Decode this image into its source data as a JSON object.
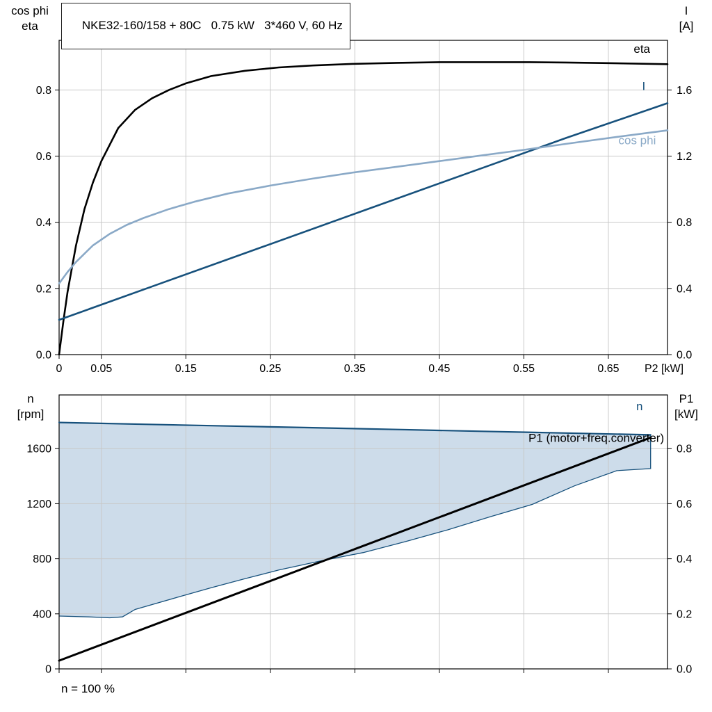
{
  "title_box": "NKE32-160/158 + 80C   0.75 kW   3*460 V, 60 Hz",
  "footnote": "n = 100 %",
  "corner_labels": {
    "top_left": [
      "cos phi",
      "eta"
    ],
    "top_right": [
      "I",
      "[A]"
    ],
    "bottom_left": [
      "n",
      "[rpm]"
    ],
    "bottom_right": [
      "P1",
      "[kW]"
    ]
  },
  "colors": {
    "dark_blue": "#17517c",
    "light_blue": "#8aa9c7",
    "band_fill": "#cddcea",
    "grid": "#c8c8c8",
    "axis": "#000000"
  },
  "chart_data": [
    {
      "type": "line",
      "title": "NKE32-160/158 + 80C  0.75 kW  3*460 V, 60 Hz",
      "x_label": "P2 [kW]",
      "x_range": [
        0,
        0.72
      ],
      "x_ticks": [
        0,
        0.05,
        0.15,
        0.25,
        0.35,
        0.45,
        0.55,
        0.65
      ],
      "x_tick_labels": [
        "0",
        "0.05",
        "0.15",
        "0.25",
        "0.35",
        "0.45",
        "0.55",
        "0.65"
      ],
      "left_axis": {
        "label": "cos phi / eta",
        "range": [
          0,
          0.95
        ],
        "ticks": [
          0,
          0.2,
          0.4,
          0.6,
          0.8
        ],
        "tick_labels": [
          "0.0",
          "0.2",
          "0.4",
          "0.6",
          "0.8"
        ]
      },
      "right_axis": {
        "label": "I [A]",
        "range": [
          0,
          1.9
        ],
        "ticks": [
          0,
          0.4,
          0.8,
          1.2,
          1.6
        ],
        "tick_labels": [
          "0.0",
          "0.4",
          "0.8",
          "1.2",
          "1.6"
        ]
      },
      "grid": true,
      "series": [
        {
          "name": "eta",
          "axis": "left",
          "color": "axis",
          "width": 2.6,
          "label": {
            "text": "eta",
            "x": 0.68,
            "y": 0.912,
            "color": "axis"
          },
          "points": [
            [
              0,
              0
            ],
            [
              0.005,
              0.1
            ],
            [
              0.01,
              0.19
            ],
            [
              0.02,
              0.33
            ],
            [
              0.03,
              0.44
            ],
            [
              0.04,
              0.52
            ],
            [
              0.05,
              0.585
            ],
            [
              0.07,
              0.685
            ],
            [
              0.09,
              0.74
            ],
            [
              0.11,
              0.775
            ],
            [
              0.13,
              0.8
            ],
            [
              0.15,
              0.82
            ],
            [
              0.18,
              0.842
            ],
            [
              0.22,
              0.858
            ],
            [
              0.26,
              0.868
            ],
            [
              0.3,
              0.874
            ],
            [
              0.35,
              0.879
            ],
            [
              0.4,
              0.882
            ],
            [
              0.45,
              0.884
            ],
            [
              0.5,
              0.884
            ],
            [
              0.55,
              0.884
            ],
            [
              0.6,
              0.883
            ],
            [
              0.65,
              0.881
            ],
            [
              0.72,
              0.878
            ]
          ]
        },
        {
          "name": "I",
          "axis": "right",
          "color": "dark_blue",
          "width": 2.6,
          "label": {
            "text": "I",
            "x": 0.69,
            "y": 1.6,
            "color": "dark_blue"
          },
          "points": [
            [
              0,
              0.21
            ],
            [
              0.12,
              0.43
            ],
            [
              0.24,
              0.65
            ],
            [
              0.36,
              0.87
            ],
            [
              0.48,
              1.09
            ],
            [
              0.6,
              1.31
            ],
            [
              0.72,
              1.52
            ]
          ]
        },
        {
          "name": "cos phi",
          "axis": "left",
          "color": "light_blue",
          "width": 2.6,
          "label": {
            "text": "cos phi",
            "x": 0.662,
            "y": 0.636,
            "color": "light_blue"
          },
          "points": [
            [
              0,
              0.215
            ],
            [
              0.01,
              0.25
            ],
            [
              0.02,
              0.28
            ],
            [
              0.04,
              0.33
            ],
            [
              0.06,
              0.365
            ],
            [
              0.08,
              0.392
            ],
            [
              0.1,
              0.413
            ],
            [
              0.13,
              0.44
            ],
            [
              0.16,
              0.462
            ],
            [
              0.2,
              0.487
            ],
            [
              0.25,
              0.511
            ],
            [
              0.3,
              0.532
            ],
            [
              0.35,
              0.551
            ],
            [
              0.4,
              0.568
            ],
            [
              0.45,
              0.585
            ],
            [
              0.5,
              0.602
            ],
            [
              0.55,
              0.619
            ],
            [
              0.6,
              0.637
            ],
            [
              0.66,
              0.658
            ],
            [
              0.72,
              0.678
            ]
          ]
        }
      ]
    },
    {
      "type": "line",
      "title": "Speed band and input power",
      "x_label": "",
      "x_range": [
        0,
        0.72
      ],
      "x_ticks": [
        0,
        0.05,
        0.15,
        0.25,
        0.35,
        0.45,
        0.55,
        0.65
      ],
      "x_tick_labels": [],
      "left_axis": {
        "label": "n [rpm]",
        "range": [
          0,
          1990
        ],
        "ticks": [
          0,
          400,
          800,
          1200,
          1600
        ],
        "tick_labels": [
          "0",
          "400",
          "800",
          "1200",
          "1600"
        ]
      },
      "right_axis": {
        "label": "P1 [kW]",
        "range": [
          0,
          0.995
        ],
        "ticks": [
          0,
          0.2,
          0.4,
          0.6,
          0.8
        ],
        "tick_labels": [
          "0.0",
          "0.2",
          "0.4",
          "0.6",
          "0.8"
        ]
      },
      "grid": true,
      "band": {
        "fill": "band_fill",
        "outline_color": "dark_blue",
        "outline_width": 1.3,
        "upper": [
          [
            0,
            1790
          ],
          [
            0.1,
            1777
          ],
          [
            0.2,
            1764
          ],
          [
            0.3,
            1752
          ],
          [
            0.4,
            1739
          ],
          [
            0.5,
            1726
          ],
          [
            0.6,
            1713
          ],
          [
            0.7,
            1700
          ]
        ],
        "lower": [
          [
            0,
            384
          ],
          [
            0.035,
            378
          ],
          [
            0.06,
            371
          ],
          [
            0.075,
            378
          ],
          [
            0.09,
            432
          ],
          [
            0.14,
            520
          ],
          [
            0.18,
            590
          ],
          [
            0.22,
            655
          ],
          [
            0.26,
            718
          ],
          [
            0.31,
            785
          ],
          [
            0.36,
            845
          ],
          [
            0.41,
            925
          ],
          [
            0.46,
            1010
          ],
          [
            0.51,
            1105
          ],
          [
            0.56,
            1195
          ],
          [
            0.61,
            1330
          ],
          [
            0.66,
            1440
          ],
          [
            0.7,
            1455
          ]
        ]
      },
      "series": [
        {
          "name": "n",
          "axis": "left",
          "color": "dark_blue",
          "width": 2.2,
          "label": {
            "text": "n",
            "x": 0.683,
            "y": 1878,
            "color": "dark_blue"
          },
          "points": [
            [
              0,
              1790
            ],
            [
              0.1,
              1777
            ],
            [
              0.2,
              1764
            ],
            [
              0.3,
              1752
            ],
            [
              0.4,
              1739
            ],
            [
              0.5,
              1726
            ],
            [
              0.6,
              1713
            ],
            [
              0.7,
              1700
            ]
          ]
        },
        {
          "name": "P1 (motor+freq.converter)",
          "axis": "right",
          "color": "axis",
          "width": 3,
          "label": {
            "text": "P1 (motor+freq.converter)",
            "x": 0.716,
            "y": 0.825,
            "color": "axis",
            "anchor": "end"
          },
          "points": [
            [
              0,
              0.03
            ],
            [
              0.35,
              0.435
            ],
            [
              0.7,
              0.84
            ]
          ]
        }
      ]
    }
  ]
}
